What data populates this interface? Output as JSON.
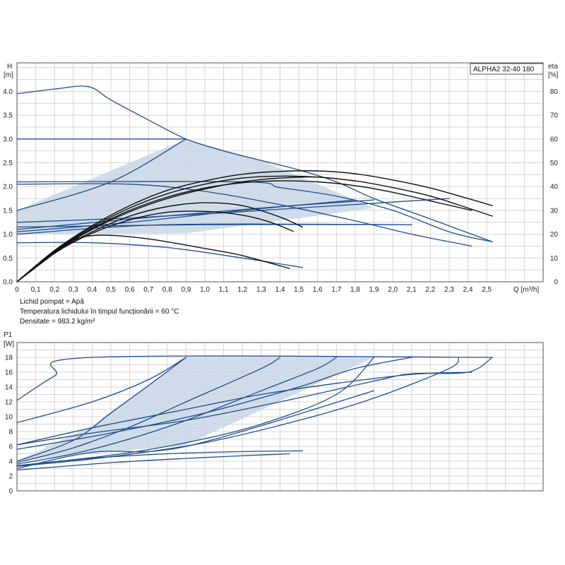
{
  "model_label": "ALPHA2 32-40 180",
  "notes": [
    "Lichid pompat = Apă",
    "Temperatura lichidului în timpul funcționării = 60 °C",
    "Densitate = 983.2 kg/m³"
  ],
  "colors": {
    "blue": "#1f4e8c",
    "black": "#111111",
    "fill": "#c8d6e5",
    "grid": "#d4d4d4"
  },
  "chart_data": [
    {
      "type": "line",
      "title": "",
      "ylabel_lines": [
        "H",
        "[m]"
      ],
      "y2label_lines": [
        "eta",
        "[%]"
      ],
      "xlabel": "Q [m³/h]",
      "xlim": [
        0,
        2.8
      ],
      "ylim": [
        0,
        4.6
      ],
      "y2lim": [
        0,
        92
      ],
      "x_ticks": [
        "0",
        "0,1",
        "0,2",
        "0,3",
        "0,4",
        "0,5",
        "0,6",
        "0,7",
        "0,8",
        "0,9",
        "1,0",
        "1,1",
        "1,2",
        "1,3",
        "1,4",
        "1,5",
        "1,6",
        "1,7",
        "1,8",
        "1,9",
        "2,0",
        "2,1",
        "2,2",
        "2,3",
        "2,4",
        "2,5"
      ],
      "y_ticks": [
        "0.0",
        "0.5",
        "1.0",
        "1.5",
        "2.0",
        "2.5",
        "3.0",
        "3.5",
        "4.0"
      ],
      "y2_ticks": [
        "0",
        "10",
        "20",
        "30",
        "40",
        "50",
        "60",
        "70",
        "80"
      ],
      "shaded_area": [
        [
          0,
          1.0
        ],
        [
          0,
          1.5
        ],
        [
          0.9,
          3.0
        ],
        [
          1.3,
          2.55
        ],
        [
          1.9,
          1.55
        ],
        [
          0.9,
          1.02
        ],
        [
          0,
          1.0
        ]
      ],
      "series": [
        {
          "color": "blue",
          "points": [
            [
              0,
              3.95
            ],
            [
              0.2,
              4.05
            ],
            [
              0.38,
              4.1
            ],
            [
              0.5,
              3.82
            ],
            [
              0.7,
              3.4
            ],
            [
              0.9,
              3.0
            ],
            [
              1.1,
              2.75
            ],
            [
              1.3,
              2.55
            ],
            [
              1.5,
              2.35
            ],
            [
              1.7,
              2.1
            ],
            [
              1.9,
              1.75
            ],
            [
              2.2,
              1.32
            ],
            [
              2.53,
              0.84
            ]
          ]
        },
        {
          "color": "blue",
          "points": [
            [
              0,
              3.0
            ],
            [
              0.9,
              3.0
            ]
          ]
        },
        {
          "color": "blue",
          "points": [
            [
              0,
              1.5
            ],
            [
              0.5,
              2.1
            ],
            [
              0.9,
              3.0
            ]
          ]
        },
        {
          "color": "blue",
          "points": [
            [
              0,
              2.1
            ],
            [
              1.2,
              2.1
            ],
            [
              1.4,
              1.98
            ],
            [
              1.7,
              1.8
            ],
            [
              2.0,
              1.5
            ],
            [
              2.3,
              1.05
            ],
            [
              2.53,
              0.84
            ]
          ]
        },
        {
          "color": "blue",
          "points": [
            [
              0,
              2.05
            ],
            [
              0.6,
              2.05
            ],
            [
              1.0,
              1.9
            ],
            [
              1.4,
              1.62
            ],
            [
              1.8,
              1.28
            ],
            [
              2.1,
              1.0
            ],
            [
              2.42,
              0.75
            ]
          ]
        },
        {
          "color": "blue",
          "points": [
            [
              0,
              1.0
            ],
            [
              0.8,
              1.2
            ],
            [
              2.1,
              1.2
            ]
          ]
        },
        {
          "color": "blue",
          "points": [
            [
              0,
              0.82
            ],
            [
              0.4,
              0.82
            ],
            [
              0.8,
              0.72
            ],
            [
              1.2,
              0.5
            ],
            [
              1.52,
              0.3
            ]
          ]
        },
        {
          "color": "blue",
          "points": [
            [
              0,
              1.25
            ],
            [
              0.6,
              1.34
            ],
            [
              1.1,
              1.45
            ],
            [
              1.5,
              1.55
            ],
            [
              1.9,
              1.65
            ],
            [
              2.3,
              1.75
            ]
          ]
        },
        {
          "color": "blue",
          "points": [
            [
              0,
              1.1
            ],
            [
              0.7,
              1.35
            ],
            [
              1.3,
              1.55
            ],
            [
              1.9,
              1.72
            ]
          ]
        },
        {
          "color": "blue",
          "points": [
            [
              0,
              1.05
            ],
            [
              0.6,
              1.25
            ],
            [
              1.2,
              1.5
            ],
            [
              1.8,
              1.72
            ]
          ]
        },
        {
          "color": "blue",
          "points": [
            [
              0,
              1.15
            ],
            [
              1.0,
              1.2
            ],
            [
              2.1,
              1.2
            ]
          ]
        },
        {
          "color": "black",
          "points": [
            [
              0,
              0
            ],
            [
              0.2,
              0.62
            ],
            [
              0.4,
              1.05
            ],
            [
              0.6,
              1.38
            ],
            [
              0.8,
              1.58
            ],
            [
              1.0,
              1.66
            ],
            [
              1.2,
              1.6
            ],
            [
              1.4,
              1.36
            ],
            [
              1.52,
              1.15
            ]
          ]
        },
        {
          "color": "black",
          "points": [
            [
              0,
              0
            ],
            [
              0.2,
              0.6
            ],
            [
              0.4,
              1.02
            ],
            [
              0.6,
              1.3
            ],
            [
              0.8,
              1.46
            ],
            [
              1.0,
              1.48
            ],
            [
              1.2,
              1.4
            ],
            [
              1.35,
              1.25
            ],
            [
              1.47,
              1.06
            ]
          ]
        },
        {
          "color": "black",
          "points": [
            [
              0,
              0
            ],
            [
              0.2,
              0.65
            ],
            [
              0.4,
              1.15
            ],
            [
              0.6,
              1.55
            ],
            [
              0.8,
              1.85
            ],
            [
              1.0,
              2.05
            ],
            [
              1.2,
              2.18
            ],
            [
              1.4,
              2.22
            ],
            [
              1.6,
              2.2
            ],
            [
              1.8,
              2.12
            ],
            [
              2.0,
              1.98
            ],
            [
              2.2,
              1.8
            ],
            [
              2.4,
              1.55
            ],
            [
              2.53,
              1.38
            ]
          ]
        },
        {
          "color": "black",
          "points": [
            [
              0,
              0
            ],
            [
              0.2,
              0.66
            ],
            [
              0.4,
              1.18
            ],
            [
              0.6,
              1.6
            ],
            [
              0.8,
              1.92
            ],
            [
              1.0,
              2.12
            ],
            [
              1.2,
              2.26
            ],
            [
              1.4,
              2.32
            ],
            [
              1.6,
              2.33
            ],
            [
              1.8,
              2.27
            ],
            [
              2.0,
              2.14
            ],
            [
              2.2,
              1.97
            ],
            [
              2.4,
              1.75
            ],
            [
              2.53,
              1.6
            ]
          ]
        },
        {
          "color": "black",
          "points": [
            [
              0,
              0
            ],
            [
              0.2,
              0.64
            ],
            [
              0.4,
              1.12
            ],
            [
              0.6,
              1.5
            ],
            [
              0.8,
              1.78
            ],
            [
              1.0,
              1.97
            ],
            [
              1.2,
              2.08
            ],
            [
              1.4,
              2.12
            ],
            [
              1.6,
              2.1
            ],
            [
              1.8,
              2.02
            ],
            [
              2.0,
              1.88
            ],
            [
              2.2,
              1.7
            ],
            [
              2.42,
              1.5
            ]
          ]
        },
        {
          "color": "black",
          "points": [
            [
              0,
              0
            ],
            [
              0.2,
              0.63
            ],
            [
              0.4,
              1.1
            ],
            [
              0.6,
              1.47
            ],
            [
              0.8,
              1.75
            ],
            [
              1.0,
              1.95
            ],
            [
              1.2,
              2.1
            ],
            [
              1.4,
              2.18
            ],
            [
              1.6,
              2.2
            ],
            [
              1.8,
              2.12
            ]
          ]
        },
        {
          "color": "black",
          "points": [
            [
              0,
              0
            ],
            [
              0.2,
              0.6
            ],
            [
              0.3,
              0.88
            ],
            [
              0.45,
              0.98
            ],
            [
              0.7,
              0.9
            ],
            [
              1.0,
              0.7
            ],
            [
              1.2,
              0.55
            ],
            [
              1.45,
              0.28
            ]
          ]
        }
      ]
    },
    {
      "type": "line",
      "title": "",
      "ylabel_lines": [
        "P1",
        "[W]"
      ],
      "xlim": [
        0,
        2.8
      ],
      "ylim": [
        0,
        20
      ],
      "y_ticks": [
        "0",
        "2",
        "4",
        "6",
        "8",
        "10",
        "12",
        "14",
        "16",
        "18"
      ],
      "shaded_area": [
        [
          0,
          4.0
        ],
        [
          0.4,
          8.8
        ],
        [
          0.9,
          18
        ],
        [
          1.9,
          18
        ],
        [
          0.9,
          6.2
        ],
        [
          0.4,
          5.0
        ],
        [
          0,
          4.0
        ]
      ],
      "series": [
        {
          "color": "blue",
          "points": [
            [
              0,
              12.2
            ],
            [
              0.2,
              15.5
            ],
            [
              0.4,
              18
            ],
            [
              2.53,
              18
            ]
          ]
        },
        {
          "color": "blue",
          "points": [
            [
              0,
              9.2
            ],
            [
              0.4,
              12.0
            ],
            [
              0.7,
              15.0
            ],
            [
              0.9,
              18
            ]
          ]
        },
        {
          "color": "blue",
          "points": [
            [
              0,
              4.0
            ],
            [
              0.3,
              6.8
            ],
            [
              0.5,
              10.5
            ],
            [
              0.7,
              14.2
            ],
            [
              0.9,
              18
            ]
          ]
        },
        {
          "color": "blue",
          "points": [
            [
              0,
              3.8
            ],
            [
              0.3,
              5.8
            ],
            [
              0.6,
              8.6
            ],
            [
              0.9,
              12.0
            ],
            [
              1.3,
              16.5
            ],
            [
              1.4,
              18
            ]
          ]
        },
        {
          "color": "blue",
          "points": [
            [
              0,
              3.6
            ],
            [
              0.3,
              5.0
            ],
            [
              0.6,
              7.0
            ],
            [
              0.9,
              9.5
            ],
            [
              1.3,
              13.5
            ],
            [
              1.6,
              16.5
            ],
            [
              1.7,
              18
            ]
          ]
        },
        {
          "color": "blue",
          "points": [
            [
              0,
              3.4
            ],
            [
              0.5,
              4.8
            ],
            [
              0.9,
              6.5
            ],
            [
              1.3,
              9.0
            ],
            [
              1.7,
              13.0
            ],
            [
              1.9,
              18
            ]
          ]
        },
        {
          "color": "blue",
          "points": [
            [
              0,
              3.3
            ],
            [
              0.5,
              4.6
            ],
            [
              1.0,
              6.5
            ],
            [
              1.5,
              9.5
            ],
            [
              1.9,
              12.5
            ],
            [
              2.3,
              16.5
            ],
            [
              2.35,
              18
            ]
          ]
        },
        {
          "color": "blue",
          "points": [
            [
              0,
              6.2
            ],
            [
              0.4,
              8.5
            ],
            [
              0.9,
              11.0
            ],
            [
              1.3,
              13.0
            ],
            [
              1.7,
              14.5
            ],
            [
              2.1,
              15.7
            ],
            [
              2.42,
              16.0
            ]
          ]
        },
        {
          "color": "blue",
          "points": [
            [
              0,
              6.2
            ],
            [
              0.4,
              7.8
            ],
            [
              0.9,
              9.5
            ],
            [
              1.4,
              12.0
            ],
            [
              1.9,
              14.8
            ],
            [
              2.1,
              15.8
            ],
            [
              2.4,
              16.0
            ],
            [
              2.53,
              18
            ]
          ]
        },
        {
          "color": "blue",
          "points": [
            [
              0,
              5.6
            ],
            [
              0.5,
              7.8
            ],
            [
              1.0,
              10.5
            ],
            [
              1.5,
              14.0
            ],
            [
              1.8,
              16.5
            ],
            [
              2.1,
              18
            ]
          ]
        },
        {
          "color": "blue",
          "points": [
            [
              0,
              3.4
            ],
            [
              0.4,
              4.4
            ],
            [
              0.8,
              5.0
            ],
            [
              1.2,
              5.3
            ],
            [
              1.52,
              5.4
            ]
          ]
        },
        {
          "color": "blue",
          "points": [
            [
              0,
              2.8
            ],
            [
              0.5,
              3.8
            ],
            [
              1.0,
              4.5
            ],
            [
              1.45,
              5.0
            ]
          ]
        },
        {
          "color": "blue",
          "points": [
            [
              0,
              3.0
            ],
            [
              0.4,
              5.2
            ],
            [
              0.9,
              6.0
            ],
            [
              1.9,
              13.5
            ]
          ]
        }
      ]
    }
  ]
}
